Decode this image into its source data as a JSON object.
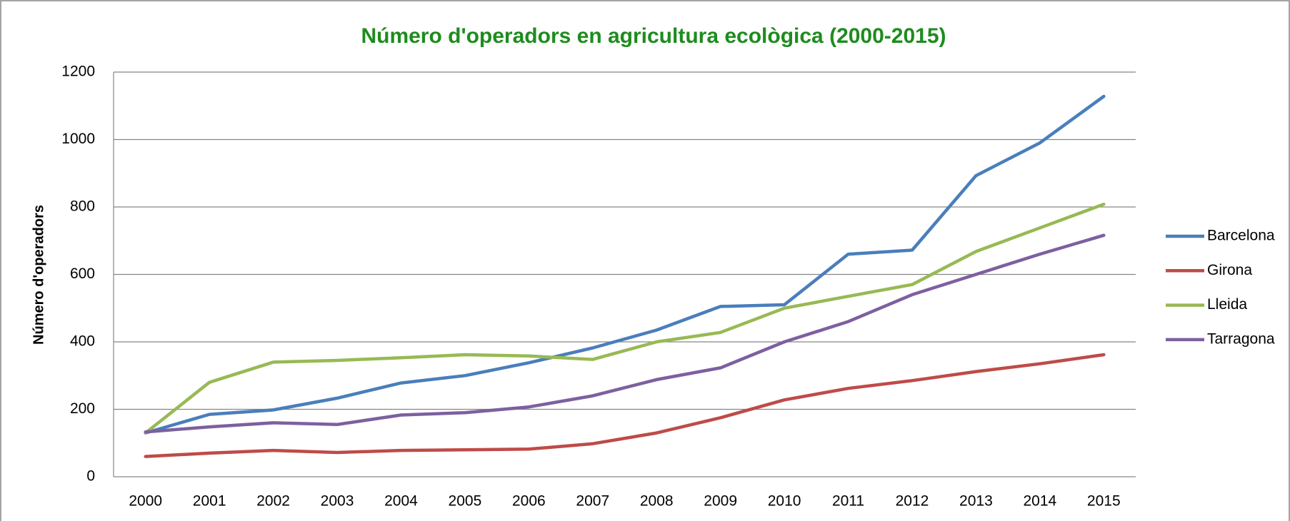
{
  "chart_data": {
    "type": "line",
    "title": "Número d'operadors en agricultura ecològica (2000-2015)",
    "y_label": "Número d'operadors",
    "categories": [
      "2000",
      "2001",
      "2002",
      "2003",
      "2004",
      "2005",
      "2006",
      "2007",
      "2008",
      "2009",
      "2010",
      "2011",
      "2012",
      "2013",
      "2014",
      "2015"
    ],
    "series": [
      {
        "name": "Barcelona",
        "color": "#4a7ebb",
        "values": [
          130,
          185,
          198,
          233,
          278,
          300,
          338,
          382,
          435,
          505,
          510,
          660,
          672,
          893,
          990,
          1128
        ]
      },
      {
        "name": "Girona",
        "color": "#be4b48",
        "values": [
          60,
          70,
          78,
          72,
          78,
          80,
          82,
          98,
          130,
          175,
          228,
          262,
          285,
          312,
          335,
          362
        ]
      },
      {
        "name": "Lleida",
        "color": "#98b954",
        "values": [
          130,
          280,
          340,
          345,
          353,
          362,
          358,
          348,
          400,
          428,
          500,
          535,
          570,
          668,
          738,
          808
        ]
      },
      {
        "name": "Tarragona",
        "color": "#7d60a0",
        "values": [
          133,
          148,
          160,
          155,
          183,
          190,
          207,
          240,
          288,
          323,
          400,
          460,
          540,
          600,
          660,
          716
        ]
      }
    ],
    "ylim": [
      0,
      1200
    ],
    "yticks": [
      0,
      200,
      400,
      600,
      800,
      1000,
      1200
    ],
    "grid": true,
    "legend": "right"
  }
}
